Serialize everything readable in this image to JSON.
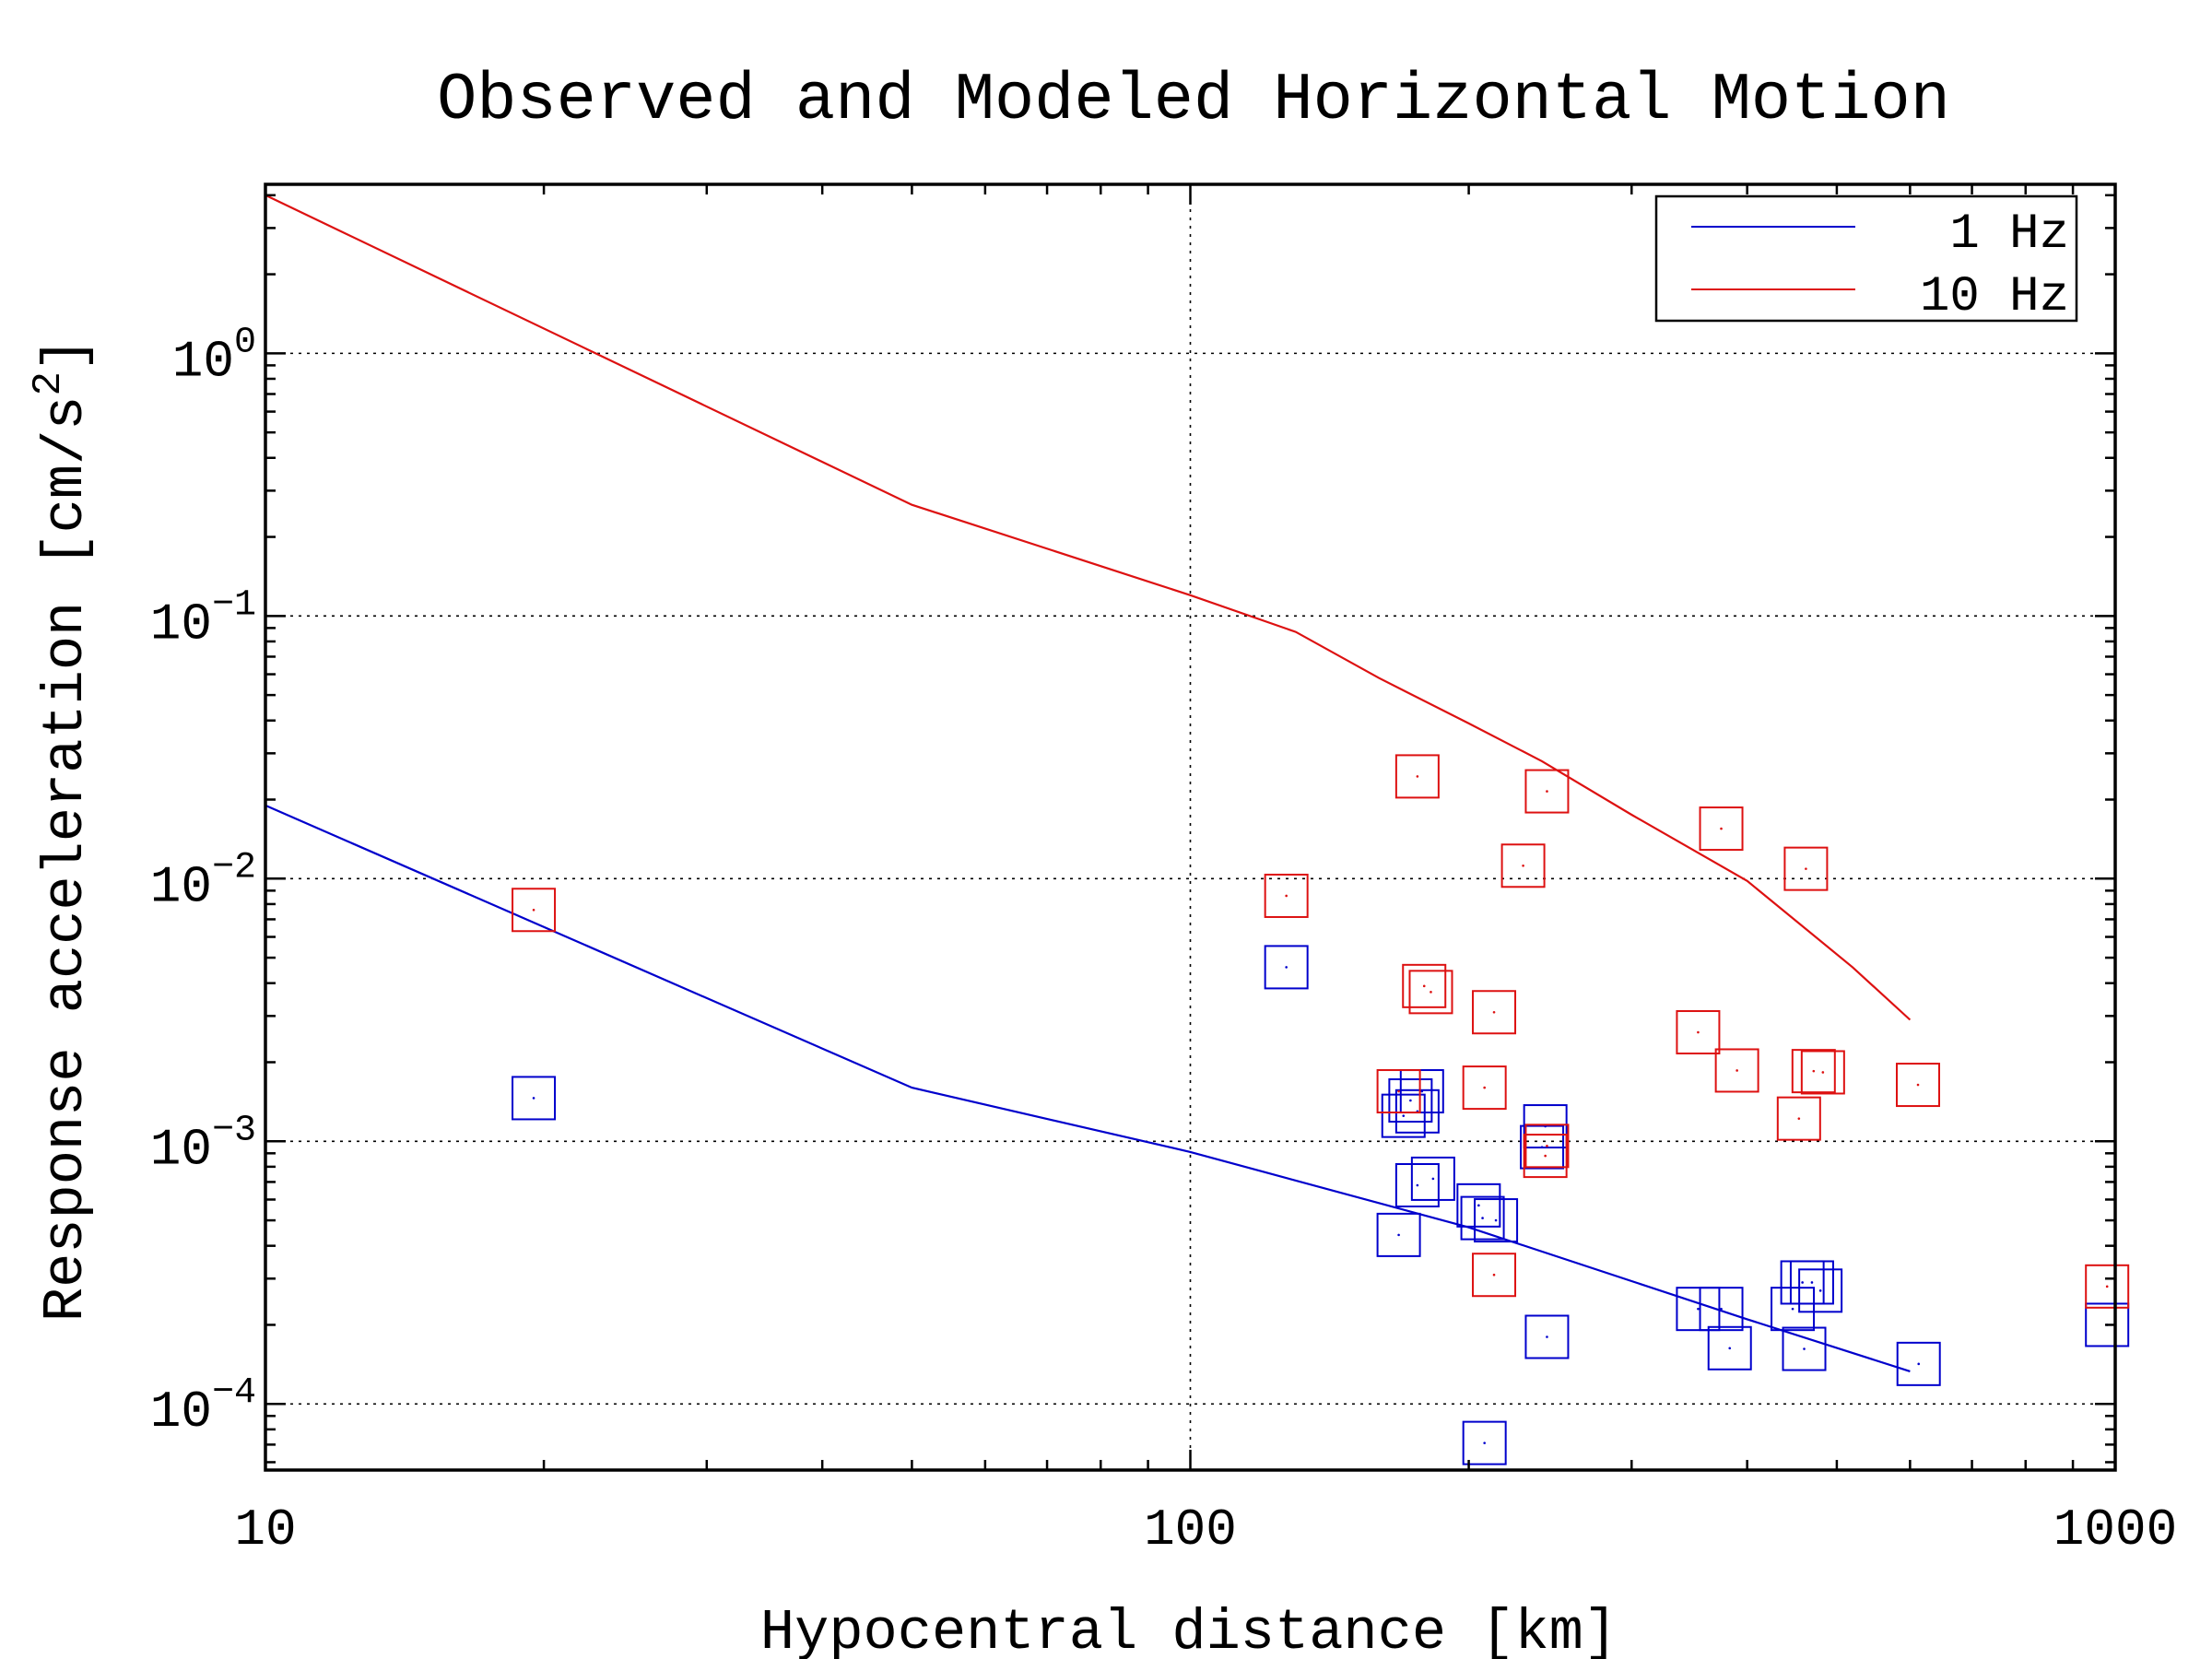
{
  "chart_data": {
    "type": "scatter",
    "title": "Observed and Modeled Horizontal Motion",
    "xlabel": "Hypocentral distance [km]",
    "ylabel": "Response acceleration [cm/s",
    "ylabel_superscript": "2",
    "ylabel_suffix": "]",
    "x_scale": "log",
    "y_scale": "log",
    "xlim": [
      10,
      1000
    ],
    "ylim": [
      5.6e-05,
      4.4
    ],
    "grid": true,
    "legend_position": "top-right",
    "x_ticks": [
      {
        "value": 10,
        "label": "10"
      },
      {
        "value": 100,
        "label": "100"
      },
      {
        "value": 1000,
        "label": "1000"
      }
    ],
    "y_ticks": [
      {
        "value": 1,
        "base": "10",
        "exponent": "0"
      },
      {
        "value": 0.1,
        "base": "10",
        "exponent": "−1"
      },
      {
        "value": 0.01,
        "base": "10",
        "exponent": "−2"
      },
      {
        "value": 0.001,
        "base": "10",
        "exponent": "−3"
      },
      {
        "value": 0.0001,
        "base": "10",
        "exponent": "−4"
      }
    ],
    "model_curves": [
      {
        "name": "1 Hz",
        "color": "#0000cc",
        "x": [
          10,
          50,
          100,
          200,
          400,
          600
        ],
        "y": [
          0.019,
          0.0016,
          0.00091,
          0.00047,
          0.00021,
          0.000133
        ]
      },
      {
        "name": "10 Hz",
        "color": "#dd1111",
        "x": [
          10,
          50,
          100,
          130,
          160,
          200,
          240,
          300,
          400,
          520,
          600
        ],
        "y": [
          4.0,
          0.265,
          0.12,
          0.087,
          0.058,
          0.039,
          0.028,
          0.0175,
          0.0098,
          0.0046,
          0.0029
        ]
      }
    ],
    "observations": [
      {
        "name": "1 Hz",
        "color": "#0000cc",
        "x": [
          19.5,
          127,
          170,
          173,
          178,
          176,
          176,
          183,
          168,
          205,
          207,
          214,
          242,
          240,
          243,
          208,
          354,
          383,
          375,
          448,
          459,
          470,
          480,
          461,
          613,
          980
        ],
        "y": [
          0.00146,
          0.0046,
          0.00125,
          0.00143,
          0.00155,
          0.0013,
          0.00068,
          0.00072,
          0.00044,
          0.00057,
          0.00051,
          0.0005,
          0.00114,
          0.00095,
          0.00018,
          7.1e-05,
          0.00023,
          0.000163,
          0.00023,
          0.00023,
          0.00029,
          0.00029,
          0.00027,
          0.000162,
          0.000142,
          0.0002
        ]
      },
      {
        "name": "10 Hz",
        "color": "#dd1111",
        "x": [
          19.5,
          127,
          176,
          243,
          229,
          375,
          463,
          179,
          182,
          213,
          354,
          390,
          168,
          208,
          483,
          472,
          455,
          612,
          243,
          242,
          213,
          980
        ],
        "y": [
          0.0076,
          0.0086,
          0.0245,
          0.0215,
          0.0112,
          0.0155,
          0.0109,
          0.0039,
          0.0037,
          0.0031,
          0.0026,
          0.00186,
          0.00155,
          0.0016,
          0.00183,
          0.00185,
          0.00122,
          0.00164,
          0.00096,
          0.00088,
          0.00031,
          0.00028
        ]
      }
    ],
    "legend": [
      {
        "label": "1 Hz",
        "color": "#0000cc"
      },
      {
        "label": "10 Hz",
        "color": "#dd1111"
      }
    ]
  }
}
